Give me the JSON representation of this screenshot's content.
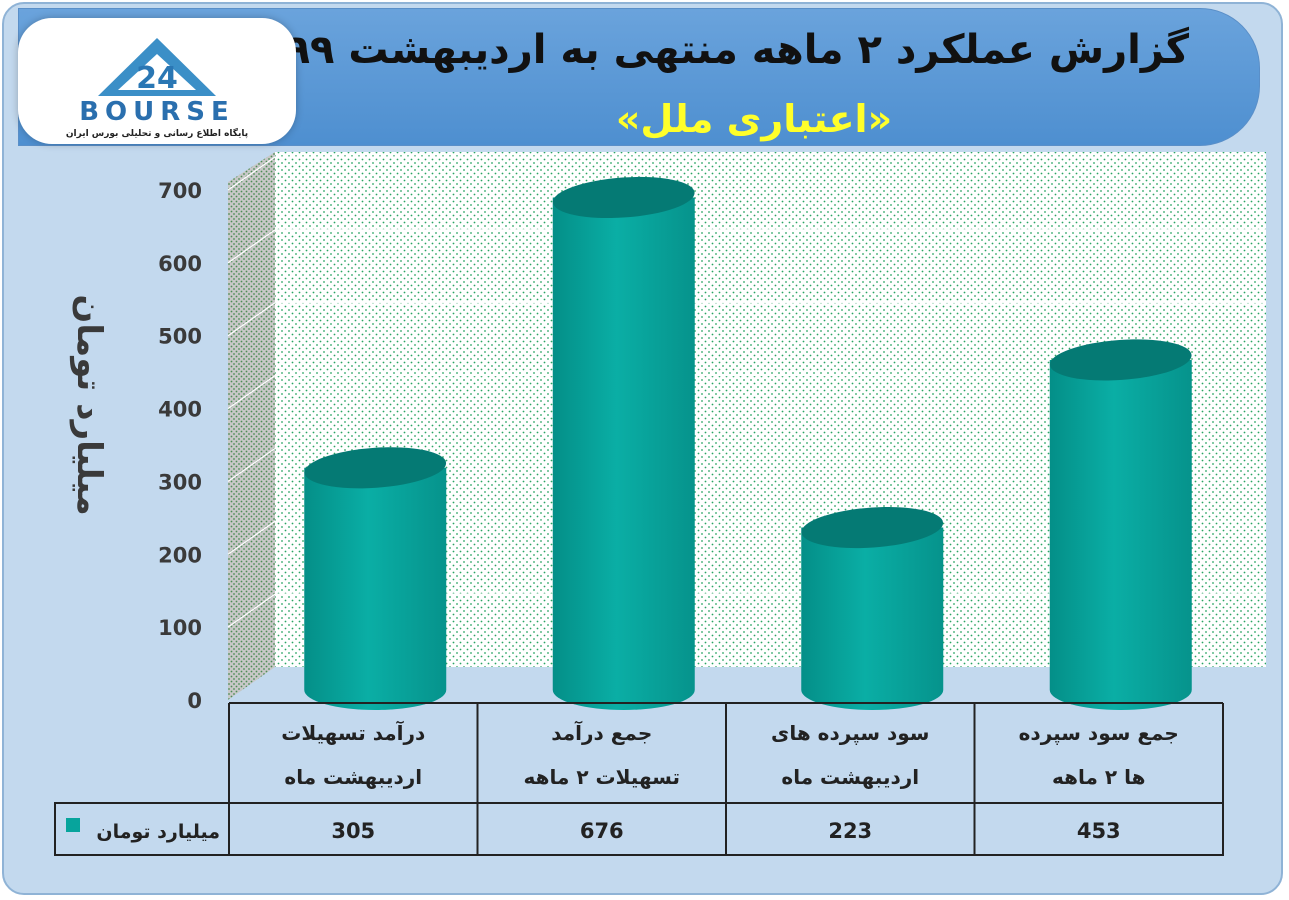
{
  "header": {
    "title": "گزارش عملکرد ۲ ماهه منتهی به اردیبهشت ۹۹",
    "subtitle": "«اعتباری ملل»",
    "logo_text": "BOURSE",
    "logo_number": "24",
    "logo_tagline": "پایگاه اطلاع رسانی و تحلیلی بورس ایران"
  },
  "colors": {
    "bar": "#07a49c",
    "bar_top": "#057a74",
    "frame": "#c3d9ee",
    "banner": "#5b9bd5",
    "title": "#111111",
    "subtitle": "#ffff2a"
  },
  "chart_data": {
    "type": "bar",
    "bar_shape": "cylinder",
    "ylabel": "میلیارد تومان",
    "ylim": [
      0,
      700
    ],
    "yticks": [
      "0",
      "100",
      "200",
      "300",
      "400",
      "500",
      "600",
      "700"
    ],
    "grid": true,
    "categories": [
      [
        "درآمد تسهیلات",
        "اردیبهشت ماه"
      ],
      [
        "جمع درآمد",
        "تسهیلات ۲ ماهه"
      ],
      [
        "سود سپرده های",
        "اردیبهشت ماه"
      ],
      [
        "جمع سود سپرده",
        "ها ۲ ماهه"
      ]
    ],
    "series": [
      {
        "name": "میلیارد تومان",
        "values": [
          305,
          676,
          223,
          453
        ],
        "labels": [
          "305",
          "676",
          "223",
          "453"
        ]
      }
    ]
  }
}
